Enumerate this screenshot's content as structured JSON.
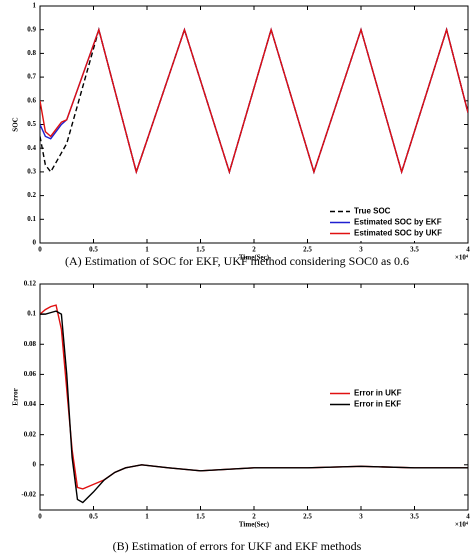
{
  "chart_data": [
    {
      "type": "line",
      "caption": "(A)  Estimation of SOC for EKF, UKF method considering SOC0 as 0.6",
      "xlabel": "Time(Sec)",
      "ylabel": "SOC",
      "x_multiplier": "×10⁴",
      "x": [
        0,
        0.05,
        0.1,
        0.2,
        0.25,
        0.55,
        0.9,
        1.35,
        1.77,
        2.16,
        2.56,
        3.0,
        3.38,
        3.8,
        4.0
      ],
      "series": [
        {
          "name": "True SOC",
          "color": "#000000",
          "dash": true,
          "values": [
            0.45,
            0.33,
            0.3,
            0.38,
            0.42,
            0.9,
            0.3,
            0.9,
            0.3,
            0.9,
            0.3,
            0.9,
            0.3,
            0.9,
            0.55
          ]
        },
        {
          "name": "Estimated SOC by EKF",
          "color": "#1f1fd0",
          "dash": false,
          "values": [
            0.5,
            0.45,
            0.44,
            0.5,
            0.52,
            0.9,
            0.3,
            0.9,
            0.3,
            0.9,
            0.3,
            0.9,
            0.3,
            0.9,
            0.55
          ]
        },
        {
          "name": "Estimated SOC by UKF",
          "color": "#e01010",
          "dash": false,
          "values": [
            0.6,
            0.47,
            0.45,
            0.51,
            0.52,
            0.9,
            0.3,
            0.9,
            0.3,
            0.9,
            0.3,
            0.9,
            0.3,
            0.9,
            0.55
          ]
        }
      ],
      "xlim": [
        0,
        4
      ],
      "xticks": [
        0,
        0.5,
        1,
        1.5,
        2,
        2.5,
        3,
        3.5,
        4
      ],
      "ylim": [
        0,
        1
      ],
      "yticks": [
        0,
        0.1,
        0.2,
        0.3,
        0.4,
        0.5,
        0.6,
        0.7,
        0.8,
        0.9,
        1
      ],
      "legend": "lower-right"
    },
    {
      "type": "line",
      "caption": "(B)  Estimation of errors for UKF and EKF methods",
      "xlabel": "Time(Sec)",
      "ylabel": "Error",
      "x_multiplier": "×10⁴",
      "x": [
        0,
        0.05,
        0.1,
        0.15,
        0.2,
        0.25,
        0.3,
        0.35,
        0.4,
        0.5,
        0.6,
        0.7,
        0.8,
        0.95,
        1.2,
        1.5,
        2,
        2.5,
        3,
        3.5,
        4
      ],
      "series": [
        {
          "name": "Error in UKF",
          "color": "#e01010",
          "dash": false,
          "values": [
            0.1,
            0.103,
            0.105,
            0.106,
            0.09,
            0.05,
            0.01,
            -0.015,
            -0.016,
            -0.013,
            -0.01,
            -0.005,
            -0.002,
            0,
            -0.002,
            -0.004,
            -0.002,
            -0.002,
            -0.001,
            -0.002,
            -0.002
          ]
        },
        {
          "name": "Error in EKF",
          "color": "#000000",
          "dash": false,
          "values": [
            0.1,
            0.1,
            0.101,
            0.102,
            0.1,
            0.06,
            0.005,
            -0.023,
            -0.025,
            -0.018,
            -0.01,
            -0.005,
            -0.002,
            0,
            -0.002,
            -0.004,
            -0.002,
            -0.002,
            -0.001,
            -0.002,
            -0.002
          ]
        }
      ],
      "xlim": [
        0,
        4
      ],
      "xticks": [
        0,
        0.5,
        1,
        1.5,
        2,
        2.5,
        3,
        3.5,
        4
      ],
      "ylim": [
        -0.03,
        0.12
      ],
      "yticks": [
        -0.02,
        0,
        0.02,
        0.04,
        0.06,
        0.08,
        0.1,
        0.12
      ],
      "legend": "center-right"
    }
  ]
}
